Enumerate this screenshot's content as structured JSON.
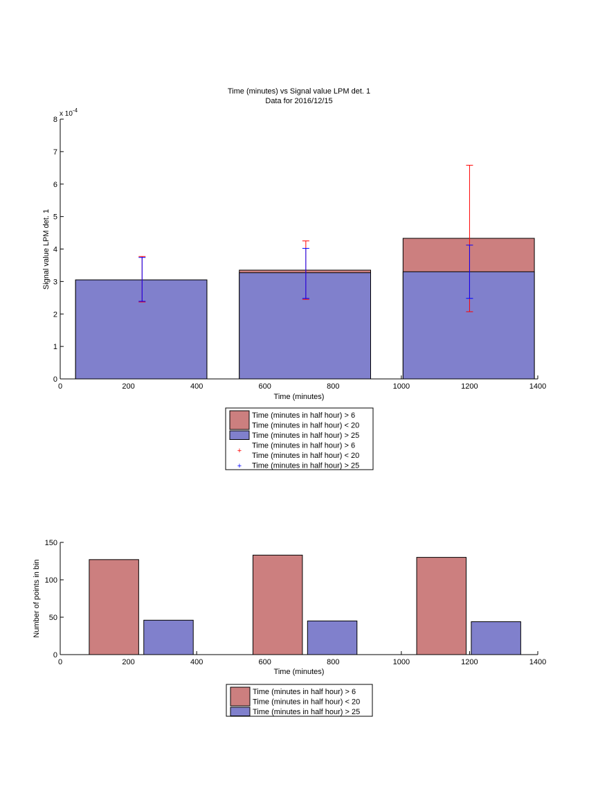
{
  "chart_data": [
    {
      "type": "bar",
      "title": "Time (minutes) vs Signal value LPM det. 1",
      "subtitle": "Data for 2016/12/15",
      "xlabel": "Time (minutes)",
      "ylabel": "Signal value LPM det. 1",
      "y_exponent_label": "x 10",
      "y_exponent": "-4",
      "xlim": [
        0,
        1400
      ],
      "ylim": [
        0,
        8
      ],
      "xticks": [
        0,
        200,
        400,
        600,
        800,
        1000,
        1200,
        1400
      ],
      "yticks": [
        0,
        1,
        2,
        3,
        4,
        5,
        6,
        7,
        8
      ],
      "stacked_overlay": true,
      "bars": [
        {
          "x_start": 45,
          "x_end": 430,
          "red_value": 3.05,
          "blue_value": 3.05
        },
        {
          "x_start": 525,
          "x_end": 910,
          "red_value": 3.35,
          "blue_value": 3.27
        },
        {
          "x_start": 1005,
          "x_end": 1390,
          "red_value": 4.33,
          "blue_value": 3.3
        }
      ],
      "error_bars": [
        {
          "series": "red",
          "x": 240,
          "low": 2.37,
          "high": 3.77
        },
        {
          "series": "blue",
          "x": 240,
          "low": 2.39,
          "high": 3.74
        },
        {
          "series": "red",
          "x": 720,
          "low": 2.45,
          "high": 4.25
        },
        {
          "series": "blue",
          "x": 720,
          "low": 2.48,
          "high": 4.02
        },
        {
          "series": "red",
          "x": 1200,
          "low": 2.07,
          "high": 6.58
        },
        {
          "series": "blue",
          "x": 1200,
          "low": 2.48,
          "high": 4.12
        }
      ],
      "legend": {
        "placement": "below",
        "entries": [
          {
            "kind": "patch",
            "color": "red",
            "lines": [
              "Time (minutes in half hour) > 6",
              "Time (minutes in half hour) < 20"
            ]
          },
          {
            "kind": "patch",
            "color": "blue",
            "lines": [
              "Time (minutes in half hour) > 25"
            ]
          },
          {
            "kind": "marker",
            "color": "red",
            "lines": [
              "Time (minutes in half hour) > 6",
              "Time (minutes in half hour) < 20"
            ]
          },
          {
            "kind": "marker",
            "color": "blue",
            "lines": [
              "Time (minutes in half hour) > 25"
            ]
          }
        ]
      }
    },
    {
      "type": "bar",
      "title": "",
      "xlabel": "Time (minutes)",
      "ylabel": "Number of points in bin",
      "xlim": [
        0,
        1400
      ],
      "ylim": [
        0,
        150
      ],
      "xticks": [
        0,
        200,
        400,
        600,
        800,
        1000,
        1200,
        1400
      ],
      "yticks": [
        0,
        50,
        100,
        150
      ],
      "bars": [
        {
          "series": "red",
          "x_start": 85,
          "x_end": 230,
          "value": 127
        },
        {
          "series": "blue",
          "x_start": 245,
          "x_end": 390,
          "value": 46
        },
        {
          "series": "red",
          "x_start": 565,
          "x_end": 710,
          "value": 133
        },
        {
          "series": "blue",
          "x_start": 725,
          "x_end": 870,
          "value": 45
        },
        {
          "series": "red",
          "x_start": 1045,
          "x_end": 1190,
          "value": 130
        },
        {
          "series": "blue",
          "x_start": 1205,
          "x_end": 1350,
          "value": 44
        }
      ],
      "legend": {
        "placement": "below",
        "entries": [
          {
            "kind": "patch",
            "color": "red",
            "lines": [
              "Time (minutes in half hour) > 6",
              "Time (minutes in half hour) < 20"
            ]
          },
          {
            "kind": "patch",
            "color": "blue",
            "lines": [
              "Time (minutes in half hour) > 25"
            ]
          }
        ]
      }
    }
  ],
  "colors": {
    "red_fill": "#cc7f7f",
    "blue_fill": "#8080cc",
    "red_line": "#ff0000",
    "blue_line": "#0000ff",
    "axis": "#000000"
  }
}
